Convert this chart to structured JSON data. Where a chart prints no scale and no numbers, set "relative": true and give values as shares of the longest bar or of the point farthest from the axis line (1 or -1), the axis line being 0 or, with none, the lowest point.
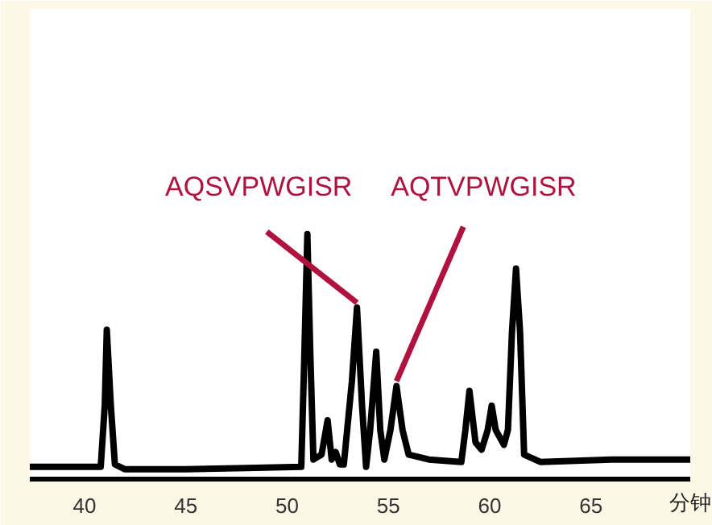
{
  "chart_data": {
    "type": "line",
    "relative": true,
    "xlabel": "分钟",
    "xlim": [
      37.3,
      69.9
    ],
    "xticks": [
      40,
      45,
      50,
      55,
      60,
      65
    ],
    "grid": false,
    "marker": "none",
    "line_style": "solid",
    "x": [
      37.3,
      40.8,
      41.0,
      41.1,
      41.3,
      41.5,
      42,
      45,
      48,
      50.7,
      50.85,
      51.0,
      51.15,
      51.3,
      51.7,
      52.0,
      52.2,
      52.4,
      52.6,
      52.8,
      53.2,
      53.45,
      53.7,
      53.9,
      54.1,
      54.4,
      54.6,
      54.8,
      55.1,
      55.4,
      55.7,
      56.0,
      57,
      58.6,
      58.8,
      59.0,
      59.3,
      59.6,
      59.9,
      60.1,
      60.3,
      60.7,
      60.9,
      61.1,
      61.3,
      61.5,
      61.7,
      62.5,
      66,
      69.9
    ],
    "series": [
      {
        "color": "#000000",
        "values": [
          0.05,
          0.05,
          0.3,
          0.61,
          0.3,
          0.06,
          0.04,
          0.04,
          0.045,
          0.05,
          0.5,
          1,
          0.5,
          0.08,
          0.1,
          0.24,
          0.08,
          0.11,
          0.06,
          0.06,
          0.4,
          0.7,
          0.3,
          0.05,
          0.2,
          0.52,
          0.2,
          0.08,
          0.2,
          0.38,
          0.2,
          0.1,
          0.08,
          0.07,
          0.2,
          0.36,
          0.15,
          0.12,
          0.2,
          0.3,
          0.2,
          0.14,
          0.2,
          0.6,
          0.86,
          0.6,
          0.1,
          0.07,
          0.08,
          0.08
        ]
      }
    ],
    "annotations": [
      {
        "text": "AQSVPWGISR",
        "x": 53.45,
        "y": 0.7
      },
      {
        "text": "AQTVPWGISR",
        "x": 55.4,
        "y": 0.38
      }
    ]
  }
}
